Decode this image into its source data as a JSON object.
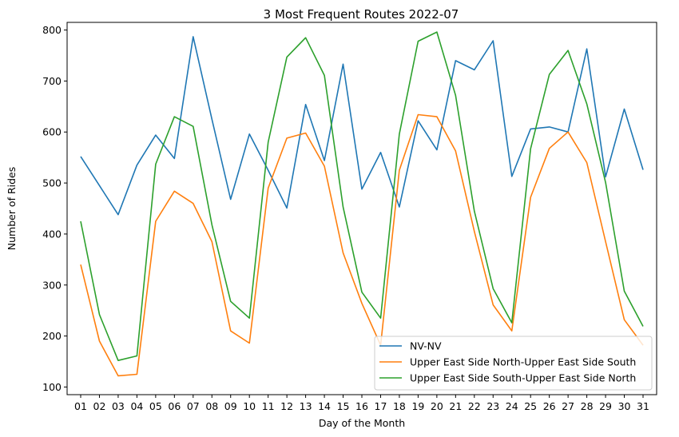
{
  "chart_data": {
    "type": "line",
    "title": "3 Most Frequent Routes 2022-07",
    "xlabel": "Day of the Month",
    "ylabel": "Number of Rides",
    "ylim": [
      85,
      815
    ],
    "yticks": [
      100,
      200,
      300,
      400,
      500,
      600,
      700,
      800
    ],
    "grid": false,
    "legend_position": "lower-right",
    "categories": [
      "01",
      "02",
      "03",
      "04",
      "05",
      "06",
      "07",
      "08",
      "09",
      "10",
      "11",
      "12",
      "13",
      "14",
      "15",
      "16",
      "17",
      "18",
      "19",
      "20",
      "21",
      "22",
      "23",
      "24",
      "25",
      "26",
      "27",
      "28",
      "29",
      "30",
      "31"
    ],
    "series": [
      {
        "name": "NV-NV",
        "color": "#1f77b4",
        "values": [
          552,
          495,
          438,
          535,
          594,
          548,
          787,
          625,
          468,
          596,
          525,
          451,
          654,
          544,
          733,
          488,
          560,
          453,
          622,
          565,
          740,
          722,
          779,
          513,
          606,
          610,
          600,
          763,
          512,
          645,
          526
        ]
      },
      {
        "name": "Upper East Side North-Upper East Side South",
        "color": "#ff7f0e",
        "values": [
          340,
          190,
          122,
          125,
          425,
          484,
          460,
          385,
          210,
          186,
          490,
          588,
          598,
          533,
          363,
          264,
          182,
          525,
          634,
          630,
          563,
          405,
          261,
          210,
          472,
          568,
          600,
          540,
          385,
          232,
          182
        ]
      },
      {
        "name": "Upper East Side South-Upper East Side North",
        "color": "#2ca02c",
        "values": [
          425,
          242,
          152,
          161,
          537,
          630,
          611,
          418,
          268,
          235,
          580,
          747,
          785,
          711,
          453,
          286,
          235,
          596,
          778,
          796,
          672,
          445,
          293,
          226,
          567,
          713,
          760,
          655,
          501,
          288,
          219
        ]
      }
    ]
  }
}
